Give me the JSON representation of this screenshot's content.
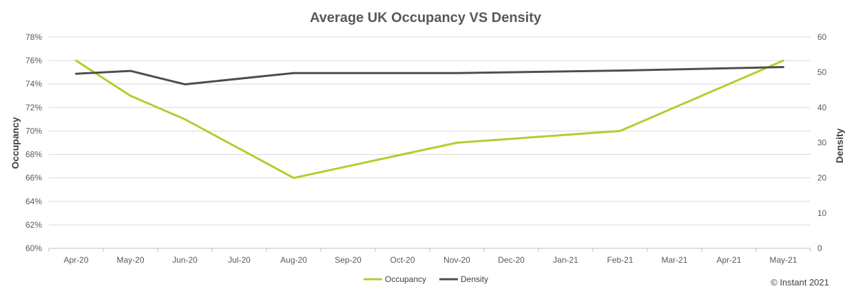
{
  "chart_data": {
    "type": "line",
    "title": "Average UK Occupancy VS Density",
    "ylabel": "Occupancy",
    "y2label": "Density",
    "categories": [
      "Apr-20",
      "May-20",
      "Jun-20",
      "Jul-20",
      "Aug-20",
      "Sep-20",
      "Oct-20",
      "Nov-20",
      "Dec-20",
      "Jan-21",
      "Feb-21",
      "Mar-21",
      "Apr-21",
      "May-21"
    ],
    "ylim": [
      60,
      78
    ],
    "y_ticks": [
      "60%",
      "62%",
      "64%",
      "66%",
      "68%",
      "70%",
      "72%",
      "74%",
      "76%",
      "78%"
    ],
    "y2lim": [
      0,
      60
    ],
    "y2_ticks": [
      "0",
      "10",
      "20",
      "30",
      "40",
      "50",
      "60"
    ],
    "series": [
      {
        "name": "Occupancy",
        "axis": "left",
        "color": "#B5CC2E",
        "values": [
          76,
          73,
          71,
          null,
          66,
          null,
          null,
          69,
          null,
          null,
          70,
          null,
          null,
          76
        ]
      },
      {
        "name": "Density",
        "axis": "right",
        "color": "#4D4D4D",
        "values": [
          49.6,
          50.4,
          46.6,
          null,
          49.8,
          null,
          null,
          49.8,
          null,
          null,
          50.5,
          null,
          null,
          51.5
        ]
      }
    ],
    "grid": true,
    "legend_position": "bottom"
  },
  "credit": "© Instant 2021"
}
